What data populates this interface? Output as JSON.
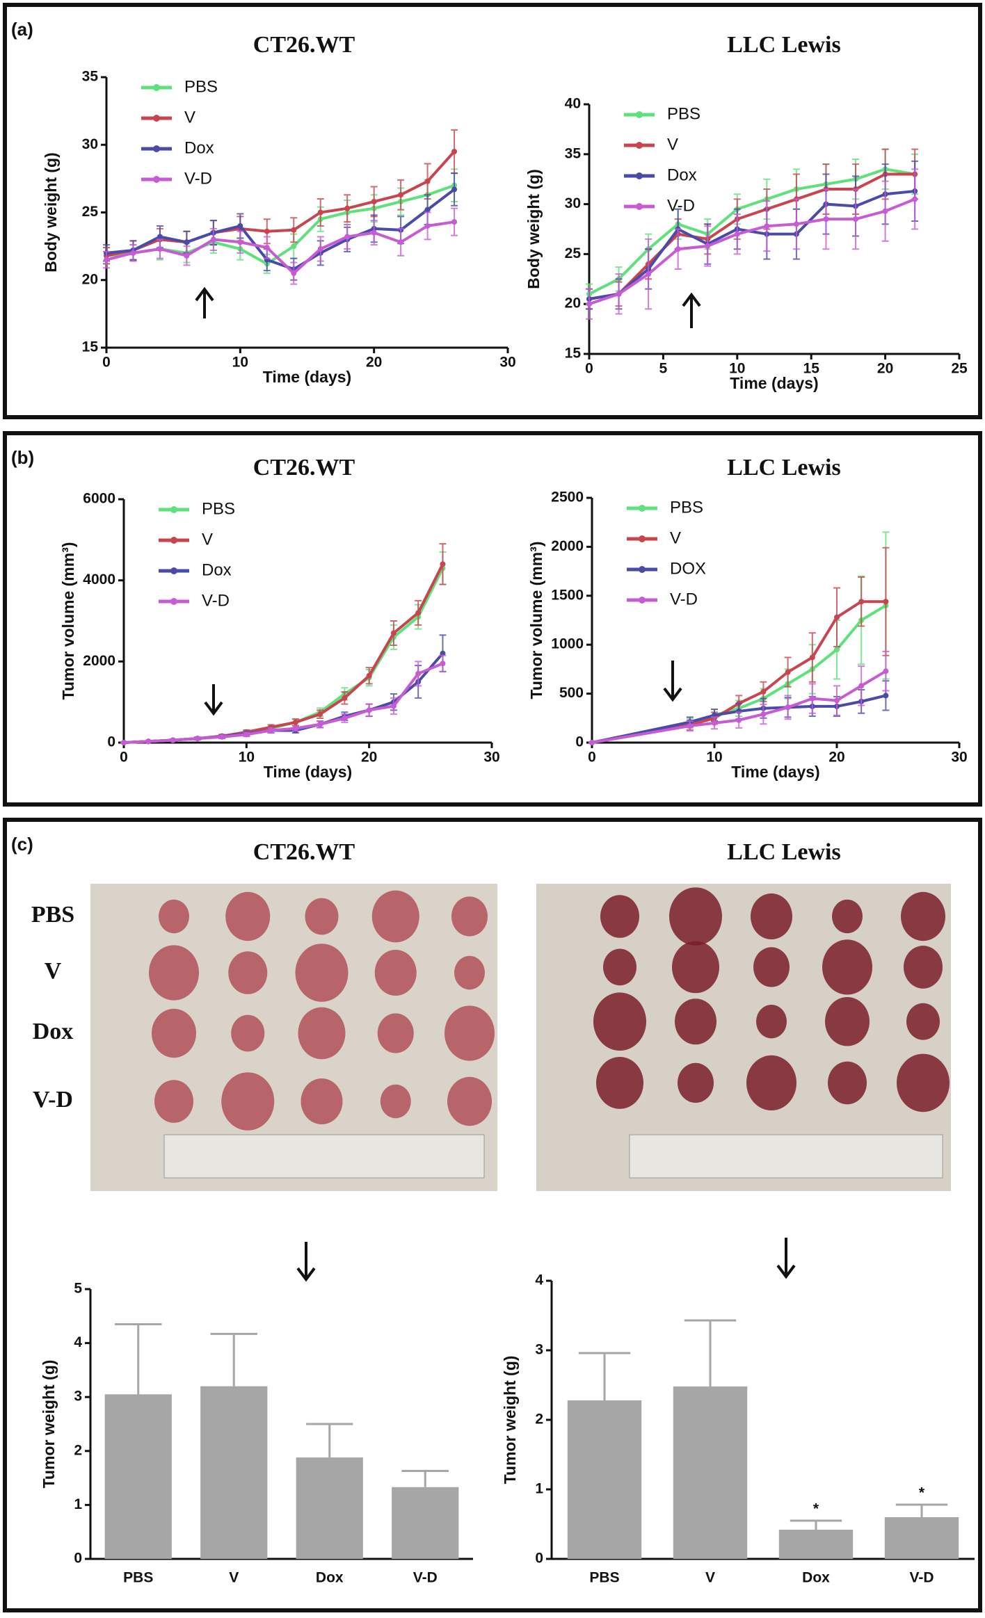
{
  "panel_labels": [
    "(a)",
    "(b)",
    "(c)"
  ],
  "photos": [
    {
      "title": "CT26.WT",
      "row_labels": [
        "PBS",
        "V",
        "Dox",
        "V-D"
      ]
    },
    {
      "title": "LLC Lewis"
    }
  ],
  "chart_data": [
    {
      "type": "line",
      "title": "CT26.WT",
      "xlabel": "Time (days)",
      "ylabel": "Body weight (g)",
      "x": [
        0,
        2,
        4,
        6,
        8,
        10,
        12,
        14,
        16,
        18,
        20,
        22,
        24,
        26
      ],
      "xlim": [
        0,
        30
      ],
      "xticks": [
        0,
        10,
        20,
        30
      ],
      "ylim": [
        15,
        35
      ],
      "yticks": [
        15,
        20,
        25,
        30,
        35
      ],
      "series": [
        {
          "name": "PBS",
          "color": "#5ee07a",
          "values": [
            21.8,
            22,
            22.3,
            22,
            22.8,
            22.3,
            21.2,
            22.5,
            24.5,
            25,
            25.3,
            25.8,
            26.3,
            27
          ],
          "errors": [
            0.6,
            0.6,
            0.8,
            0.7,
            0.8,
            0.8,
            0.7,
            0.9,
            0.9,
            0.9,
            1,
            1,
            1.1,
            1.2
          ]
        },
        {
          "name": "V",
          "color": "#c8454f",
          "values": [
            21.8,
            22.2,
            23,
            22.8,
            23.5,
            23.8,
            23.6,
            23.7,
            25,
            25.3,
            25.8,
            26.3,
            27.3,
            29.5
          ],
          "errors": [
            0.6,
            0.7,
            0.8,
            0.8,
            0.9,
            0.9,
            0.9,
            0.9,
            1,
            1,
            1.1,
            1.1,
            1.3,
            1.6
          ]
        },
        {
          "name": "Dox",
          "color": "#4a4aa8",
          "values": [
            22,
            22.2,
            23.2,
            22.8,
            23.5,
            24,
            21.5,
            20.8,
            22,
            23,
            23.8,
            23.7,
            25.2,
            26.7
          ],
          "errors": [
            0.6,
            0.7,
            0.8,
            0.8,
            0.9,
            0.9,
            0.8,
            0.8,
            0.9,
            0.9,
            1,
            1,
            1.1,
            1.2
          ]
        },
        {
          "name": "V-D",
          "color": "#c75bd6",
          "values": [
            21.5,
            22,
            22.3,
            21.8,
            23,
            22.8,
            22.4,
            20.5,
            22.3,
            23.2,
            23.5,
            22.8,
            24,
            24.3
          ],
          "errors": [
            0.6,
            0.6,
            0.7,
            0.7,
            0.8,
            0.8,
            0.8,
            0.8,
            0.9,
            0.9,
            0.9,
            1,
            1,
            1
          ]
        }
      ]
    },
    {
      "type": "line",
      "title": "LLC Lewis",
      "xlabel": "Time (days)",
      "ylabel": "Body weight (g)",
      "x": [
        0,
        2,
        4,
        6,
        8,
        10,
        12,
        14,
        16,
        18,
        20,
        22
      ],
      "xlim": [
        0,
        25
      ],
      "xticks": [
        0,
        5,
        10,
        15,
        20,
        25
      ],
      "ylim": [
        15,
        40
      ],
      "yticks": [
        15,
        20,
        25,
        30,
        35,
        40
      ],
      "series": [
        {
          "name": "PBS",
          "color": "#5ee07a",
          "values": [
            21,
            22.5,
            25.5,
            28,
            27,
            29.5,
            30.5,
            31.5,
            32,
            32.5,
            33.5,
            33
          ],
          "errors": [
            1,
            1.2,
            1.5,
            1.5,
            1.5,
            1.5,
            2,
            2,
            2,
            2,
            2,
            2
          ]
        },
        {
          "name": "V",
          "color": "#c8454f",
          "values": [
            20.5,
            21,
            24,
            27,
            26.5,
            28.5,
            29.5,
            30.5,
            31.5,
            31.5,
            33,
            33
          ],
          "errors": [
            1,
            1.2,
            1.5,
            1.5,
            1.5,
            2,
            2,
            2.5,
            2.5,
            2.5,
            2.5,
            2.5
          ]
        },
        {
          "name": "Dox",
          "color": "#4a4aa8",
          "values": [
            20.5,
            21,
            23.5,
            27.5,
            26,
            27.5,
            27,
            27,
            30,
            29.8,
            31,
            31.3
          ],
          "errors": [
            1,
            1.5,
            2,
            2,
            2,
            2,
            2.5,
            2.5,
            3,
            3,
            3,
            3
          ]
        },
        {
          "name": "V-D",
          "color": "#c75bd6",
          "values": [
            20,
            21,
            23,
            25.5,
            25.8,
            27,
            27.8,
            28,
            28.5,
            28.5,
            29.3,
            30.5
          ],
          "errors": [
            1.5,
            2,
            3.5,
            2,
            2,
            2,
            2.5,
            2.5,
            3,
            3,
            3,
            3
          ]
        }
      ]
    },
    {
      "type": "line",
      "title": "CT26.WT",
      "xlabel": "Time (days)",
      "ylabel": "Tumor volume (mm³)",
      "x": [
        0,
        2,
        4,
        6,
        8,
        10,
        12,
        14,
        16,
        18,
        20,
        22,
        24,
        26
      ],
      "xlim": [
        0,
        30
      ],
      "xticks": [
        0,
        10,
        20,
        30
      ],
      "ylim": [
        0,
        6000
      ],
      "yticks": [
        0,
        2000,
        4000,
        6000
      ],
      "series": [
        {
          "name": "PBS",
          "color": "#5ee07a",
          "values": [
            0,
            30,
            60,
            100,
            150,
            250,
            350,
            500,
            750,
            1200,
            1600,
            2600,
            3100,
            4300
          ],
          "errors": [
            0,
            10,
            20,
            30,
            40,
            50,
            60,
            80,
            100,
            150,
            200,
            300,
            300,
            400
          ]
        },
        {
          "name": "V",
          "color": "#c8454f",
          "values": [
            0,
            30,
            60,
            100,
            160,
            260,
            380,
            500,
            700,
            1100,
            1650,
            2700,
            3200,
            4400
          ],
          "errors": [
            0,
            10,
            20,
            30,
            40,
            50,
            60,
            80,
            100,
            150,
            200,
            300,
            300,
            500
          ]
        },
        {
          "name": "Dox",
          "color": "#4a4aa8",
          "values": [
            0,
            30,
            60,
            100,
            150,
            220,
            300,
            300,
            450,
            650,
            800,
            1000,
            1500,
            2200
          ],
          "errors": [
            0,
            10,
            20,
            30,
            40,
            50,
            60,
            60,
            80,
            100,
            150,
            200,
            400,
            450
          ]
        },
        {
          "name": "V-D",
          "color": "#c75bd6",
          "values": [
            0,
            30,
            60,
            100,
            140,
            200,
            300,
            350,
            450,
            600,
            800,
            900,
            1700,
            1950
          ],
          "errors": [
            0,
            10,
            20,
            30,
            40,
            50,
            60,
            60,
            80,
            100,
            150,
            200,
            300,
            200
          ]
        }
      ]
    },
    {
      "type": "line",
      "title": "LLC Lewis",
      "xlabel": "Time (days)",
      "ylabel": "Tumor volume (mm³)",
      "x": [
        0,
        8,
        10,
        12,
        14,
        16,
        18,
        20,
        22,
        24
      ],
      "xlim": [
        0,
        30
      ],
      "xticks": [
        0,
        10,
        20,
        30
      ],
      "ylim": [
        0,
        2500
      ],
      "yticks": [
        0,
        500,
        1000,
        1500,
        2000,
        2500
      ],
      "series": [
        {
          "name": "PBS",
          "color": "#5ee07a",
          "values": [
            0,
            200,
            280,
            350,
            450,
            600,
            750,
            950,
            1250,
            1400
          ],
          "errors": [
            0,
            50,
            60,
            80,
            100,
            150,
            250,
            300,
            450,
            750
          ]
        },
        {
          "name": "V",
          "color": "#c8454f",
          "values": [
            0,
            180,
            250,
            400,
            520,
            720,
            870,
            1280,
            1440,
            1440
          ],
          "errors": [
            0,
            50,
            60,
            80,
            100,
            150,
            250,
            300,
            250,
            550
          ]
        },
        {
          "name": "DOX",
          "color": "#4a4aa8",
          "values": [
            0,
            210,
            280,
            320,
            350,
            360,
            370,
            370,
            420,
            480
          ],
          "errors": [
            0,
            50,
            60,
            80,
            100,
            100,
            100,
            100,
            120,
            150
          ]
        },
        {
          "name": "V-D",
          "color": "#c75bd6",
          "values": [
            0,
            170,
            200,
            230,
            290,
            360,
            450,
            430,
            580,
            730
          ],
          "errors": [
            0,
            50,
            60,
            80,
            100,
            120,
            150,
            150,
            200,
            200
          ]
        }
      ]
    },
    {
      "type": "bar",
      "ylabel": "Tumor weight (g)",
      "categories": [
        "PBS",
        "V",
        "Dox",
        "V-D"
      ],
      "values": [
        3.05,
        3.2,
        1.88,
        1.33
      ],
      "errors": [
        1.3,
        0.97,
        0.62,
        0.3
      ],
      "color": "#a6a6a6",
      "ylim": [
        0,
        5
      ],
      "yticks": [
        0,
        1,
        2,
        3,
        4,
        5
      ]
    },
    {
      "type": "bar",
      "ylabel": "Tumor weight (g)",
      "categories": [
        "PBS",
        "V",
        "Dox",
        "V-D"
      ],
      "values": [
        2.28,
        2.48,
        0.42,
        0.6
      ],
      "errors": [
        0.68,
        0.95,
        0.13,
        0.18
      ],
      "color": "#a6a6a6",
      "significance": [
        null,
        null,
        "*",
        "*"
      ],
      "ylim": [
        0,
        4
      ],
      "yticks": [
        0,
        1,
        2,
        3,
        4
      ]
    }
  ]
}
